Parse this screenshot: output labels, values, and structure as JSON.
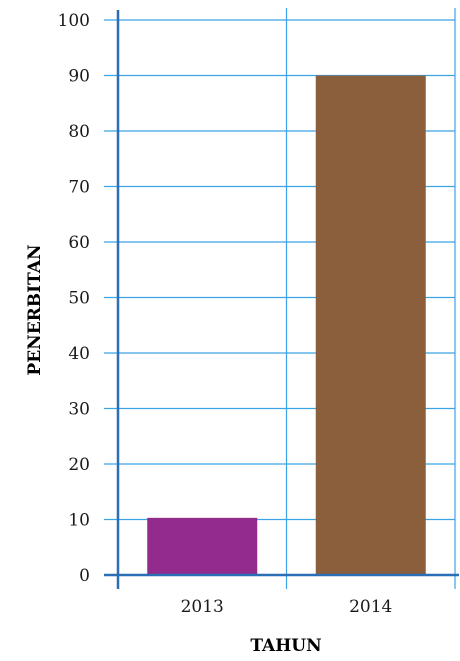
{
  "chart_data": {
    "type": "bar",
    "categories": [
      "2013",
      "2014"
    ],
    "values": [
      10.3,
      90
    ],
    "colors": [
      "#922b8c",
      "#8b5e3c"
    ],
    "xlabel": "TAHUN",
    "ylabel": "PENERBITAN",
    "ylim": [
      0,
      100
    ],
    "yticks": [
      "0",
      "10",
      "20",
      "30",
      "40",
      "50",
      "60",
      "70",
      "80",
      "90",
      "100"
    ],
    "grid": true,
    "grid_color": "#3ba3e6",
    "axis_color": "#2a6fb5"
  }
}
